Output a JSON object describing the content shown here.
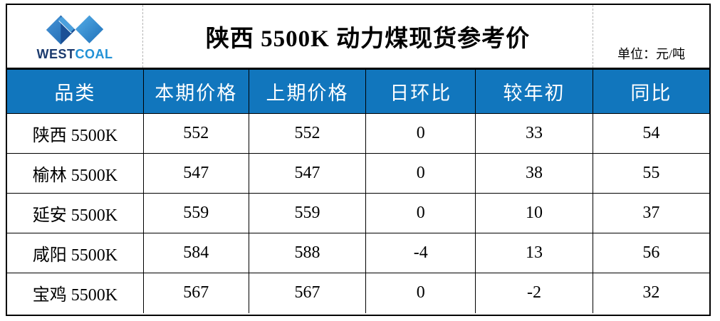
{
  "brand": {
    "name_west": "WEST",
    "name_coal": "COAL"
  },
  "header": {
    "title": "陕西 5500K 动力煤现货参考价",
    "unit_label": "单位：元/吨"
  },
  "colors": {
    "header_row_bg": "#1176BD",
    "brand_dark_blue": "#1B3A6E",
    "brand_light_blue": "#2191D6",
    "logo_gradient_left": [
      "#4795D8",
      "#1C64AC"
    ],
    "logo_gradient_right": [
      "#55AEE8",
      "#1E6FB8"
    ]
  },
  "chart_data": {
    "type": "table",
    "title": "陕西 5500K 动力煤现货参考价",
    "unit": "元/吨",
    "columns": [
      "品类",
      "本期价格",
      "上期价格",
      "日环比",
      "较年初",
      "同比"
    ],
    "rows": [
      [
        "陕西 5500K",
        552,
        552,
        0,
        33,
        54
      ],
      [
        "榆林 5500K",
        547,
        547,
        0,
        38,
        55
      ],
      [
        "延安 5500K",
        559,
        559,
        0,
        10,
        37
      ],
      [
        "咸阳 5500K",
        584,
        588,
        -4,
        13,
        56
      ],
      [
        "宝鸡 5500K",
        567,
        567,
        0,
        -2,
        32
      ]
    ]
  }
}
